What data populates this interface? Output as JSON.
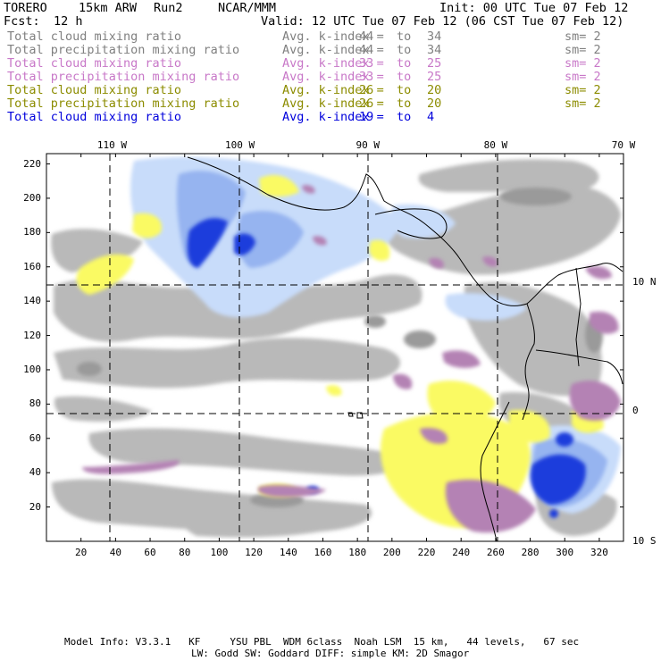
{
  "header": {
    "model": "TORERO",
    "resolution": "15km ARW",
    "run": "Run2",
    "org": "NCAR/MMM",
    "init": "Init: 00 UTC Tue 07 Feb 12",
    "fcst_label": "Fcst:",
    "fcst_value": "12 h",
    "valid": "Valid: 12 UTC Tue 07 Feb 12 (06 CST Tue 07 Feb 12)"
  },
  "legend": [
    {
      "field": "Total cloud mixing ratio",
      "index": "Avg. k-index =",
      "from": "44",
      "to_word": "to",
      "to": "34",
      "sm": "sm= 2",
      "color": "#808080"
    },
    {
      "field": "Total precipitation mixing ratio",
      "index": "Avg. k-index =",
      "from": "44",
      "to_word": "to",
      "to": "34",
      "sm": "sm= 2",
      "color": "#808080"
    },
    {
      "field": "Total cloud mixing ratio",
      "index": "Avg. k-index =",
      "from": "33",
      "to_word": "to",
      "to": "25",
      "sm": "sm= 2",
      "color": "#c878c8"
    },
    {
      "field": "Total precipitation mixing ratio",
      "index": "Avg. k-index =",
      "from": "33",
      "to_word": "to",
      "to": "25",
      "sm": "sm= 2",
      "color": "#c878c8"
    },
    {
      "field": "Total cloud mixing ratio",
      "index": "Avg. k-index =",
      "from": "26",
      "to_word": "to",
      "to": "20",
      "sm": "sm= 2",
      "color": "#8c8c00"
    },
    {
      "field": "Total precipitation mixing ratio",
      "index": "Avg. k-index =",
      "from": "26",
      "to_word": "to",
      "to": "20",
      "sm": "sm= 2",
      "color": "#8c8c00"
    },
    {
      "field": "Total cloud mixing ratio",
      "index": "Avg. k-index =",
      "from": "19",
      "to_word": "to",
      "to": "4",
      "sm": "",
      "color": "#0000dc"
    }
  ],
  "map": {
    "x_ticks": [
      20,
      40,
      60,
      80,
      100,
      120,
      140,
      160,
      180,
      200,
      220,
      240,
      260,
      280,
      300,
      320
    ],
    "y_ticks": [
      20,
      40,
      60,
      80,
      100,
      120,
      140,
      160,
      180,
      200,
      220
    ],
    "x_range": [
      0,
      334
    ],
    "y_range": [
      0,
      226
    ],
    "lon_labels": [
      {
        "text": "110 W",
        "grid_x": 38
      },
      {
        "text": "100 W",
        "grid_x": 112
      },
      {
        "text": "90 W",
        "grid_x": 186
      },
      {
        "text": "80 W",
        "grid_x": 260
      },
      {
        "text": "70 W",
        "grid_x": 334
      }
    ],
    "lat_labels": [
      {
        "text": "10 N",
        "grid_y": 151
      },
      {
        "text": "0",
        "grid_y": 76
      },
      {
        "text": "10 S",
        "grid_y": 0
      }
    ],
    "colors": {
      "background": "#ffffff",
      "gray_light": "#c8c8c8",
      "gray": "#a8a8a8",
      "gray_dark": "#8c8c8c",
      "purple": "#b482b4",
      "yellow": "#fafa64",
      "blue_light": "#c8dcfa",
      "blue_mid": "#96b4f0",
      "blue_dark": "#1e3cdc",
      "coast": "#000000",
      "grid": "#000000"
    }
  },
  "footer": {
    "line1": "Model Info: V3.3.1   KF     YSU PBL  WDM 6class  Noah LSM  15 km,   44 levels,   67 sec",
    "line2": "LW: Godd SW: Goddard DIFF: simple KM: 2D Smagor"
  }
}
